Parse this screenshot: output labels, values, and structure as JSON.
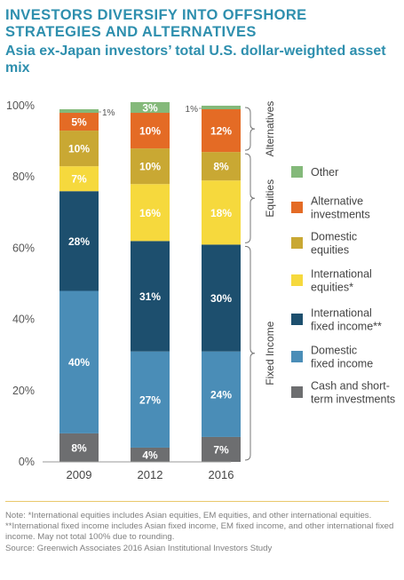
{
  "title": "INVESTORS DIVERSIFY INTO OFFSHORE STRATEGIES AND ALTERNATIVES",
  "subtitle": "Asia ex-Japan investors’ total U.S. dollar-weighted asset mix",
  "chart_data": {
    "type": "bar",
    "stacked": true,
    "categories": [
      "2009",
      "2012",
      "2016"
    ],
    "ylim": [
      0,
      100
    ],
    "yticks": [
      "0%",
      "20%",
      "40%",
      "60%",
      "80%",
      "100%"
    ],
    "series": [
      {
        "name": "Cash and short-term investments",
        "color": "#6d6e70",
        "values": [
          8,
          4,
          7
        ],
        "labels": [
          "8%",
          "4%",
          "7%"
        ]
      },
      {
        "name": "Domestic fixed income",
        "color": "#4a8db7",
        "values": [
          40,
          27,
          24
        ],
        "labels": [
          "40%",
          "27%",
          "24%"
        ]
      },
      {
        "name": "International fixed income**",
        "color": "#1d4f6e",
        "values": [
          28,
          31,
          30
        ],
        "labels": [
          "28%",
          "31%",
          "30%"
        ]
      },
      {
        "name": "International equities*",
        "color": "#f6d93d",
        "values": [
          7,
          16,
          18
        ],
        "labels": [
          "7%",
          "16%",
          "18%"
        ]
      },
      {
        "name": "Domestic equities",
        "color": "#c9a833",
        "values": [
          10,
          10,
          8
        ],
        "labels": [
          "10%",
          "10%",
          "8%"
        ]
      },
      {
        "name": "Alternative investments",
        "color": "#e46b25",
        "values": [
          5,
          10,
          12
        ],
        "labels": [
          "5%",
          "10%",
          "12%"
        ]
      },
      {
        "name": "Other",
        "color": "#84b97a",
        "values": [
          1,
          3,
          1
        ],
        "labels": [
          "1%",
          "3%",
          "1%"
        ]
      }
    ],
    "legend": [
      {
        "lines": [
          "Other"
        ],
        "color": "#84b97a"
      },
      {
        "lines": [
          "Alternative",
          "investments"
        ],
        "color": "#e46b25"
      },
      {
        "lines": [
          "Domestic",
          "equities"
        ],
        "color": "#c9a833"
      },
      {
        "lines": [
          "International",
          "equities*"
        ],
        "color": "#f6d93d"
      },
      {
        "lines": [
          "International",
          "fixed income**"
        ],
        "color": "#1d4f6e"
      },
      {
        "lines": [
          "Domestic",
          "fixed income"
        ],
        "color": "#4a8db7"
      },
      {
        "lines": [
          "Cash and short-",
          "term investments"
        ],
        "color": "#6d6e70"
      }
    ],
    "groups": [
      {
        "label": "Alternatives",
        "range": [
          87,
          100
        ]
      },
      {
        "label": "Equities",
        "range": [
          61,
          87
        ]
      },
      {
        "label": "Fixed Income",
        "range": [
          0,
          61
        ]
      }
    ],
    "legend_position": "right"
  },
  "notes": [
    "Note: *International equities includes Asian equities, EM equities, and other international equities. **International fixed income includes Asian fixed income, EM fixed income, and other international fixed income. May not total 100% due to rounding.",
    "Source: Greenwich Associates 2016 Asian Institutional Investors Study"
  ]
}
